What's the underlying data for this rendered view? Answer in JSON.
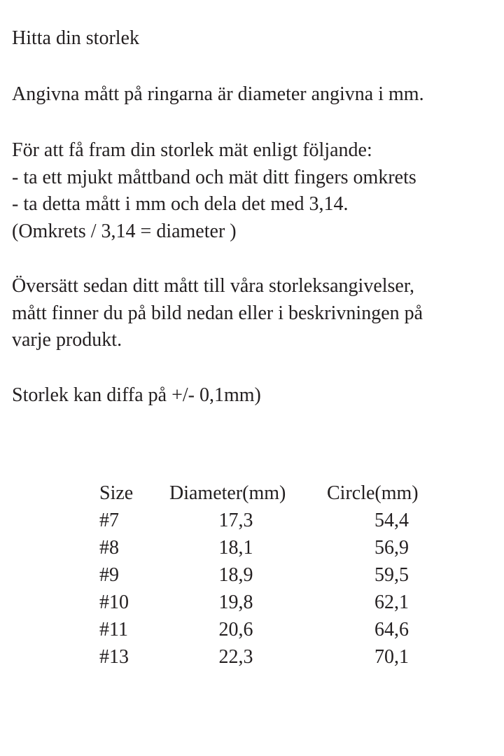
{
  "title": "Hitta din storlek",
  "intro": "Angivna mått på ringarna är diameter angivna i mm.",
  "instructions": [
    "För att få fram din storlek mät enligt följande:",
    "- ta ett mjukt måttband och mät ditt fingers omkrets",
    "- ta detta mått i mm och dela det med 3,14.",
    "(Omkrets / 3,14 = diameter )"
  ],
  "translate": [
    "Översätt sedan ditt mått till våra storleksangivelser,",
    "mått finner du på bild nedan eller i beskrivningen på",
    "varje produkt."
  ],
  "tolerance": "Storlek kan diffa på +/- 0,1mm)",
  "table": {
    "headers": [
      "Size",
      "Diameter(mm)",
      "Circle(mm)"
    ],
    "rows": [
      [
        "#7",
        "17,3",
        "54,4"
      ],
      [
        "#8",
        "18,1",
        "56,9"
      ],
      [
        "#9",
        "18,9",
        "59,5"
      ],
      [
        "#10",
        "19,8",
        "62,1"
      ],
      [
        "#11",
        "20,6",
        "64,6"
      ],
      [
        "#13",
        "22,3",
        "70,1"
      ]
    ]
  }
}
